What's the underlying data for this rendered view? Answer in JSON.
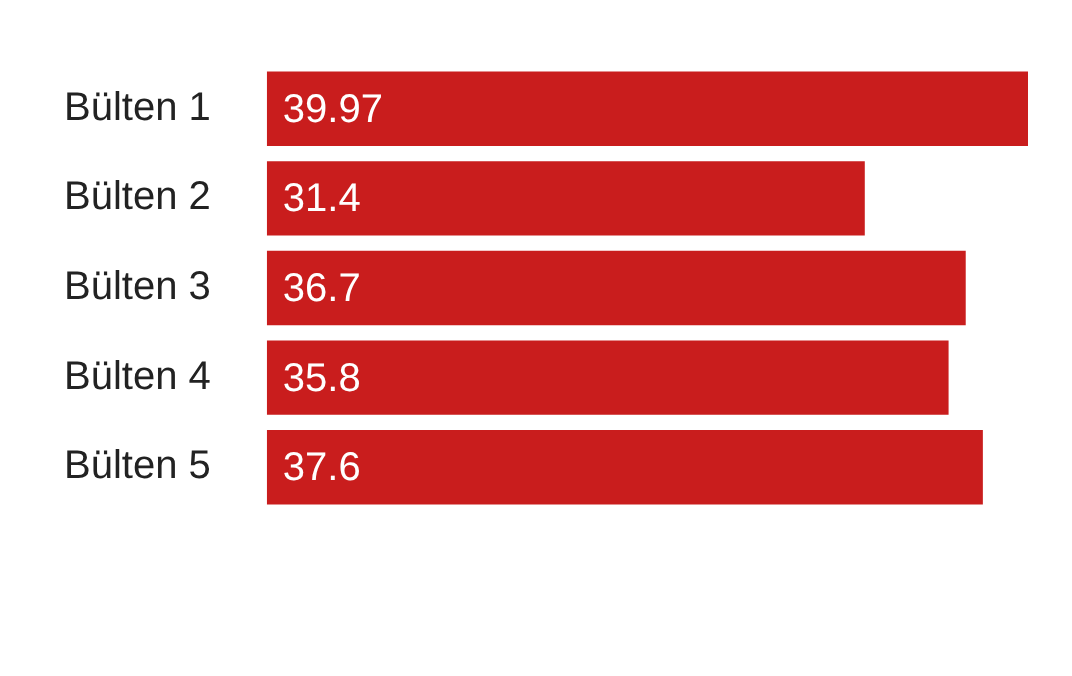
{
  "chart_data": {
    "type": "bar",
    "orientation": "horizontal",
    "categories": [
      "Bülten 1",
      "Bülten 2",
      "Bülten 3",
      "Bülten 4",
      "Bülten 5"
    ],
    "values": [
      39.97,
      31.4,
      36.7,
      35.8,
      37.6
    ],
    "color": "#c91d1d",
    "data_labels": true,
    "legend": false,
    "tick_labels": "y"
  }
}
